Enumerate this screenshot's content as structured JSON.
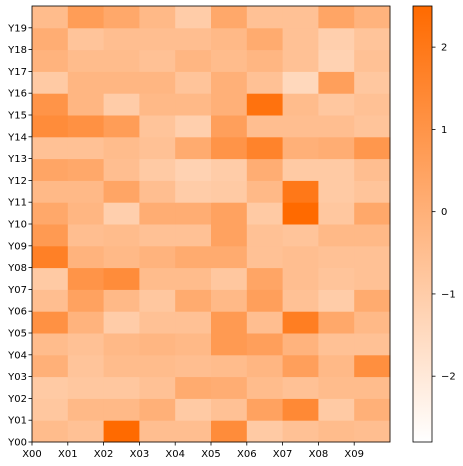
{
  "chart_data": {
    "type": "heatmap",
    "x_labels": [
      "X00",
      "X01",
      "X02",
      "X03",
      "X04",
      "X05",
      "X06",
      "X07",
      "X08",
      "X09"
    ],
    "y_labels": [
      "Y00",
      "Y01",
      "Y02",
      "Y03",
      "Y04",
      "Y05",
      "Y06",
      "Y07",
      "Y08",
      "Y09",
      "Y10",
      "Y11",
      "Y12",
      "Y13",
      "Y14",
      "Y15",
      "Y16",
      "Y17",
      "Y18",
      "Y19"
    ],
    "values": [
      [
        -0.4,
        -0.6,
        2.5,
        -0.5,
        -0.5,
        1.3,
        -0.9,
        -0.6,
        -0.4,
        -0.5
      ],
      [
        -0.8,
        -0.3,
        -0.3,
        0.0,
        -0.9,
        -0.6,
        0.5,
        1.4,
        -0.9,
        0.0
      ],
      [
        -0.9,
        -0.8,
        -0.8,
        -0.6,
        0.2,
        0.1,
        -0.4,
        -0.6,
        -0.4,
        -0.4
      ],
      [
        0.0,
        -0.7,
        -0.4,
        -0.4,
        -0.5,
        -0.4,
        -0.2,
        0.6,
        -0.3,
        1.2
      ],
      [
        -0.4,
        -0.6,
        -0.3,
        -0.2,
        -0.3,
        0.8,
        0.6,
        -0.1,
        -0.6,
        -0.6
      ],
      [
        1.1,
        -0.1,
        -1.0,
        -0.6,
        -0.6,
        0.8,
        -0.5,
        1.8,
        0.3,
        -0.3
      ],
      [
        -0.5,
        0.5,
        -0.3,
        -0.8,
        0.2,
        -0.3,
        0.6,
        -0.6,
        -1.0,
        0.2
      ],
      [
        -0.9,
        1.0,
        1.3,
        -0.4,
        -0.4,
        -0.8,
        0.4,
        -0.5,
        -0.7,
        -0.6
      ],
      [
        1.7,
        -0.1,
        -0.3,
        -0.1,
        0.2,
        0.2,
        -0.6,
        -0.5,
        -0.6,
        -0.6
      ],
      [
        0.8,
        -0.5,
        -0.4,
        -0.6,
        -0.6,
        0.5,
        -0.6,
        -0.7,
        -0.3,
        -0.3
      ],
      [
        0.3,
        -0.2,
        -1.1,
        0.1,
        0.1,
        0.5,
        -0.9,
        2.5,
        -0.8,
        0.3
      ],
      [
        -0.3,
        -0.3,
        0.4,
        -0.5,
        -1.0,
        -0.9,
        -0.3,
        2.0,
        -0.9,
        -0.7
      ],
      [
        0.4,
        0.3,
        -0.5,
        -0.9,
        -1.2,
        -1.0,
        0.1,
        -0.9,
        -0.9,
        -0.5
      ],
      [
        -0.6,
        -0.6,
        -0.4,
        -0.6,
        0.2,
        1.0,
        1.6,
        0.0,
        0.1,
        0.9
      ],
      [
        1.3,
        1.1,
        0.7,
        -0.7,
        -1.1,
        0.6,
        -0.5,
        -0.5,
        -0.5,
        -0.7
      ],
      [
        1.0,
        -0.2,
        -1.0,
        -0.3,
        -0.3,
        0.0,
        2.2,
        -0.4,
        -0.8,
        -0.6
      ],
      [
        -0.9,
        -0.2,
        -0.2,
        -0.2,
        -0.7,
        0.0,
        -0.6,
        -1.4,
        0.6,
        -0.8
      ],
      [
        -0.1,
        -0.4,
        -0.4,
        -0.6,
        -0.2,
        -0.4,
        -0.2,
        -0.6,
        -1.2,
        -0.6
      ],
      [
        0.1,
        -0.7,
        -0.5,
        -0.5,
        -0.5,
        -0.3,
        0.2,
        -0.6,
        -1.1,
        -0.7
      ],
      [
        -0.4,
        0.7,
        0.3,
        -0.3,
        -1.0,
        0.3,
        -0.6,
        -0.6,
        0.4,
        -0.1
      ]
    ],
    "colorbar": {
      "min": -2.8,
      "max": 2.5,
      "ticks": [
        -2,
        -1,
        0,
        1,
        2
      ]
    },
    "colormap": {
      "low": "#ffffff",
      "high": "#ff6a00"
    },
    "title": "",
    "xlabel": "",
    "ylabel": ""
  }
}
